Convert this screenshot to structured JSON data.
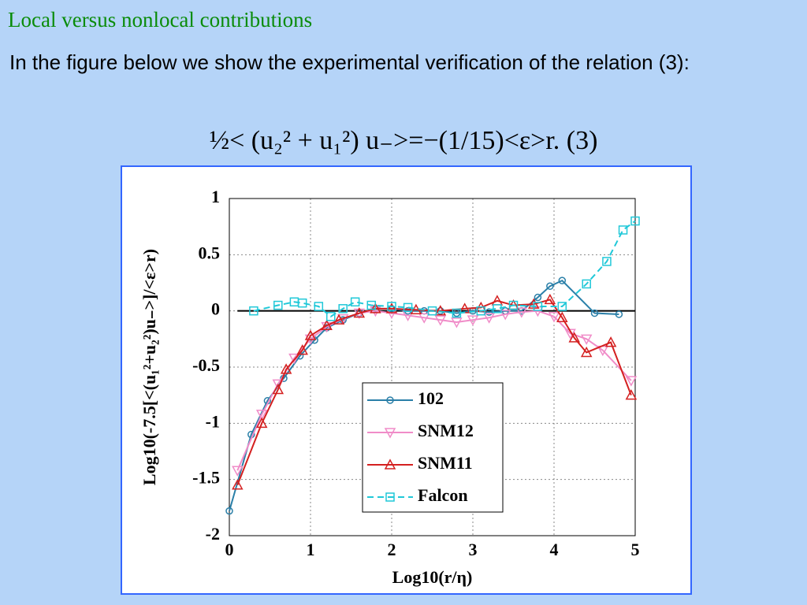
{
  "title": "Local versus nonlocal contributions",
  "text": "In the figure below we show the experimental verification of the relation (3):",
  "equation": "½< (u₂² + u₁²) u₋>=−(1/15)<ε>r.  (3)",
  "chart_data": {
    "type": "line",
    "xlabel": "Log10(r/η)",
    "ylabel": "Log10(-7.5[<(u₁²+u₂²)u₋>]/<ε>r)",
    "xlim": [
      0,
      5
    ],
    "ylim": [
      -2,
      1
    ],
    "xticks": [
      0,
      1,
      2,
      3,
      4,
      5
    ],
    "yticks": [
      -2,
      -1.5,
      -1,
      -0.5,
      0,
      0.5,
      1
    ],
    "grid": true,
    "hline": 0,
    "series": [
      {
        "name": "102",
        "color": "#2a7fa8",
        "marker": "circle",
        "dash": false,
        "x": [
          0,
          0.27,
          0.47,
          0.67,
          0.87,
          1.05,
          1.2,
          1.4,
          1.6,
          1.8,
          2.0,
          2.2,
          2.4,
          2.6,
          2.8,
          3.0,
          3.2,
          3.4,
          3.6,
          3.8,
          3.95,
          4.1,
          4.5,
          4.8
        ],
        "values": [
          -1.78,
          -1.1,
          -0.8,
          -0.6,
          -0.4,
          -0.26,
          -0.15,
          -0.08,
          -0.02,
          0.02,
          0.02,
          0.0,
          0.0,
          0.0,
          -0.02,
          0.0,
          -0.01,
          0.0,
          0.0,
          0.12,
          0.22,
          0.27,
          -0.02,
          -0.03
        ]
      },
      {
        "name": "SNM12",
        "color": "#f08cc8",
        "marker": "tri-down",
        "dash": false,
        "x": [
          0.1,
          0.4,
          0.6,
          0.8,
          1.0,
          1.2,
          1.4,
          1.6,
          1.8,
          2.0,
          2.2,
          2.4,
          2.6,
          2.8,
          3.0,
          3.2,
          3.4,
          3.6,
          3.8,
          4.0,
          4.2,
          4.4,
          4.6,
          4.95
        ],
        "values": [
          -1.42,
          -0.92,
          -0.65,
          -0.42,
          -0.25,
          -0.14,
          -0.07,
          -0.02,
          0.0,
          -0.02,
          -0.04,
          -0.06,
          -0.08,
          -0.1,
          -0.08,
          -0.06,
          -0.03,
          -0.01,
          0.0,
          -0.05,
          -0.2,
          -0.25,
          -0.35,
          -0.62
        ]
      },
      {
        "name": "SNM11",
        "color": "#d42020",
        "marker": "tri-up",
        "dash": false,
        "x": [
          0.1,
          0.4,
          0.6,
          0.7,
          0.9,
          1.0,
          1.2,
          1.35,
          1.6,
          1.8,
          2.0,
          2.3,
          2.6,
          2.9,
          3.1,
          3.3,
          3.5,
          3.75,
          3.95,
          4.1,
          4.25,
          4.4,
          4.7,
          4.95
        ],
        "values": [
          -1.55,
          -1.0,
          -0.7,
          -0.52,
          -0.35,
          -0.22,
          -0.13,
          -0.08,
          -0.02,
          0.02,
          0.02,
          0.01,
          0.0,
          0.02,
          0.03,
          0.09,
          0.05,
          0.06,
          0.1,
          -0.06,
          -0.24,
          -0.37,
          -0.28,
          -0.75
        ]
      },
      {
        "name": "Falcon",
        "color": "#20c8d8",
        "marker": "square",
        "dash": true,
        "x": [
          0.3,
          0.6,
          0.8,
          0.9,
          1.1,
          1.25,
          1.4,
          1.55,
          1.75,
          2.0,
          2.2,
          2.5,
          2.8,
          3.1,
          3.3,
          3.5,
          3.8,
          4.1,
          4.4,
          4.65,
          4.85,
          5.0
        ],
        "values": [
          0.0,
          0.05,
          0.08,
          0.07,
          0.04,
          -0.05,
          0.02,
          0.08,
          0.05,
          0.04,
          0.03,
          0.0,
          -0.02,
          0.0,
          0.02,
          0.05,
          0.04,
          0.04,
          0.24,
          0.44,
          0.72,
          0.8
        ]
      }
    ]
  }
}
